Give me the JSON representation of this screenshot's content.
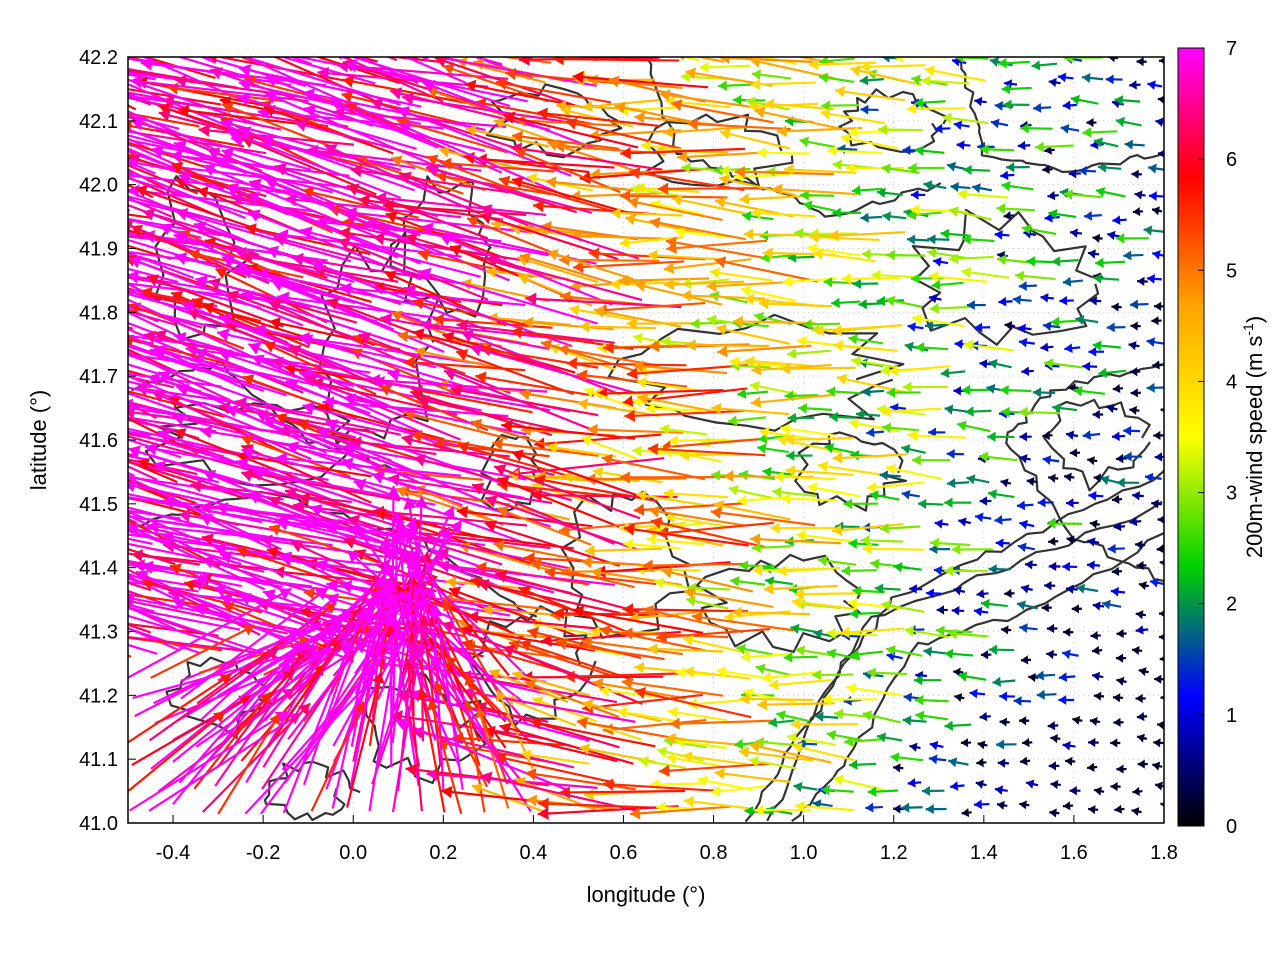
{
  "chart_data": {
    "type": "vector-field",
    "title": "",
    "xlabel": "longitude (°)",
    "ylabel": "latitude (°)",
    "xlim": [
      -0.5,
      1.8
    ],
    "ylim": [
      41.0,
      42.2
    ],
    "xticks": [
      -0.4,
      -0.2,
      0.0,
      0.2,
      0.4,
      0.6,
      0.8,
      1.0,
      1.2,
      1.4,
      1.6,
      1.8
    ],
    "xtick_labels": [
      "-0.4",
      "-0.2",
      "0.0",
      "0.2",
      "0.4",
      "0.6",
      "0.8",
      "1.0",
      "1.2",
      "1.4",
      "1.6",
      "1.8"
    ],
    "yticks": [
      41.0,
      41.1,
      41.2,
      41.3,
      41.4,
      41.5,
      41.6,
      41.7,
      41.8,
      41.9,
      42.0,
      42.1,
      42.2
    ],
    "ytick_labels": [
      "41.0",
      "41.1",
      "41.2",
      "41.3",
      "41.4",
      "41.5",
      "41.6",
      "41.7",
      "41.8",
      "41.9",
      "42.0",
      "42.1",
      "42.2"
    ],
    "grid": true,
    "colorbar": {
      "label_parts": {
        "main": "200m-wind speed (m s",
        "sup": "-1",
        "close": ")"
      },
      "range": [
        0,
        7
      ],
      "ticks": [
        "0",
        "1",
        "2",
        "3",
        "4",
        "5",
        "6",
        "7"
      ],
      "palette": [
        "#000000",
        "#0000ff",
        "#00d000",
        "#ffff00",
        "#ffa500",
        "#ff0000",
        "#ff00ff"
      ]
    },
    "regimes": [
      {
        "region": "west",
        "speed_m_s": 7,
        "direction": "from east-southeast"
      },
      {
        "region": "central",
        "speed_m_s": 5,
        "direction": "from east"
      },
      {
        "region": "southeast",
        "speed_m_s": 1.5,
        "direction": "from east"
      }
    ],
    "contours": {
      "color": "#333333",
      "description": "terrain elevation isolines"
    }
  }
}
